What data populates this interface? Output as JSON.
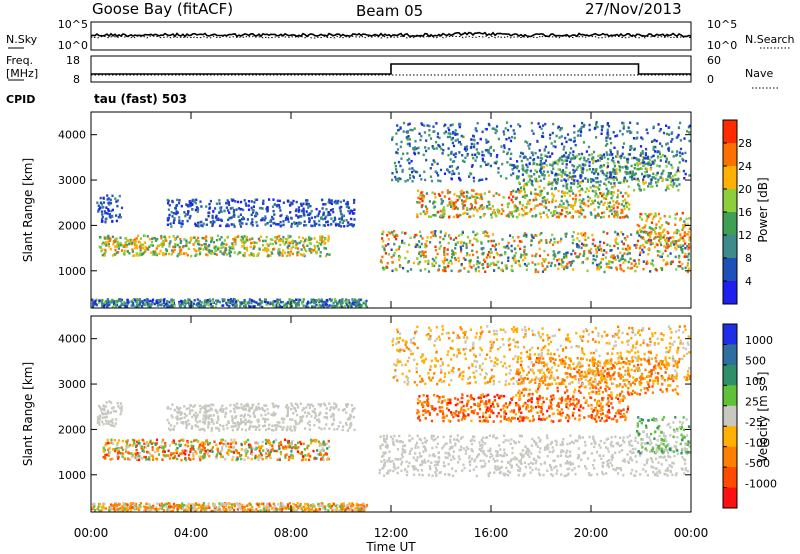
{
  "header": {
    "station": "Goose Bay (fitACF)",
    "beam": "Beam 05",
    "date": "27/Nov/2013"
  },
  "noise_panel": {
    "left_label": "N.Sky",
    "left_ticks": [
      "10^5",
      "10^0"
    ],
    "right_label": "N.Search",
    "right_ticks": [
      "10^5",
      "10^0"
    ]
  },
  "freq_panel": {
    "left_label_1": "Freq.",
    "left_label_2": "[MHz]",
    "left_ticks": [
      "18",
      "8"
    ],
    "right_label": "Nave",
    "right_ticks": [
      "60",
      "0"
    ],
    "cpid_label": "CPID",
    "cpid_value": "tau (fast) 503"
  },
  "chart_data": [
    {
      "type": "heatmap",
      "quantity": "Power",
      "ylabel": "Slant Range [km]",
      "ylim": [
        180,
        4500
      ],
      "yticks": [
        "1000",
        "2000",
        "3000",
        "4000"
      ],
      "colorbar_label": "Power [dB]",
      "colorbar_ticks": [
        "4",
        "8",
        "12",
        "16",
        "20",
        "24",
        "28"
      ],
      "colorbar_range": [
        0,
        32
      ],
      "colorbar_colors": [
        "#1f1fee",
        "#1f4fb8",
        "#3f8a8a",
        "#3fa055",
        "#8ccf3a",
        "#ffb000",
        "#ff7000",
        "#ff2a00"
      ]
    },
    {
      "type": "heatmap",
      "quantity": "Velocity",
      "ylabel": "Slant Range [km]",
      "ylim": [
        180,
        4500
      ],
      "yticks": [
        "1000",
        "2000",
        "3000",
        "4000"
      ],
      "xlabel": "Time UT",
      "xticks": [
        "00:00",
        "04:00",
        "08:00",
        "12:00",
        "16:00",
        "20:00",
        "00:00"
      ],
      "xlim_hours": [
        0,
        24
      ],
      "colorbar_label": "Velocity [m s",
      "colorbar_label_sup": "-1",
      "colorbar_label_end": "]",
      "colorbar_ticks": [
        "1000",
        "500",
        "100",
        "25",
        "-25",
        "-100",
        "-500",
        "-1000"
      ],
      "colorbar_colors": [
        "#1f2fe8",
        "#2f6fa0",
        "#2f8f6a",
        "#5fc03a",
        "#c8c8c0",
        "#ffb000",
        "#ff8000",
        "#ff4a00",
        "#ff1010"
      ]
    }
  ]
}
